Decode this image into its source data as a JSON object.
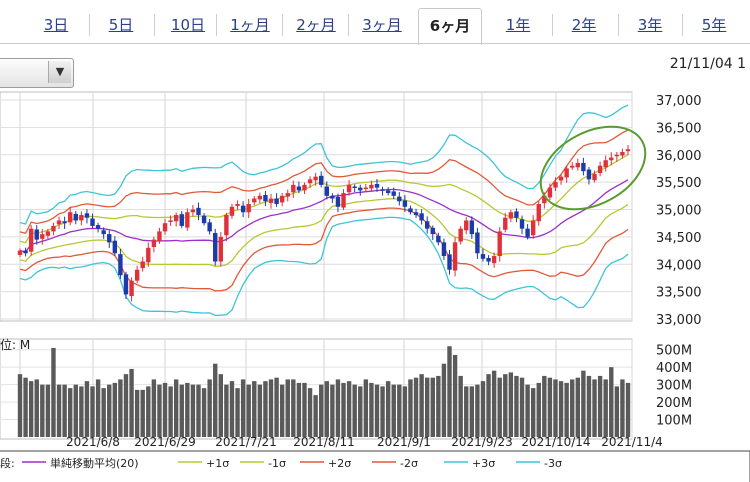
{
  "tabs": [
    {
      "label": "3日",
      "active": false
    },
    {
      "label": "5日",
      "active": false
    },
    {
      "label": "10日",
      "active": false
    },
    {
      "label": "1ヶ月",
      "active": false
    },
    {
      "label": "2ヶ月",
      "active": false
    },
    {
      "label": "3ヶ月",
      "active": false
    },
    {
      "label": "6ヶ月",
      "active": true
    },
    {
      "label": "1年",
      "active": false
    },
    {
      "label": "2年",
      "active": false
    },
    {
      "label": "3年",
      "active": false
    },
    {
      "label": "5年",
      "active": false
    }
  ],
  "header": {
    "datestamp": "21/11/04 1",
    "dropdown_icon": "triangle-down-icon"
  },
  "chart_data": {
    "type": "candlestick",
    "price_axis": {
      "ticks": [
        "37,000",
        "36,500",
        "36,000",
        "35,500",
        "35,000",
        "34,500",
        "34,000",
        "33,500",
        "33,000"
      ],
      "ylim": [
        33000,
        37000
      ]
    },
    "volume_axis": {
      "label": "位: M",
      "ticks": [
        "500M",
        "400M",
        "300M",
        "200M",
        "100M"
      ],
      "ylim": [
        0,
        550
      ]
    },
    "x_labels": [
      "2021/6/8",
      "2021/6/29",
      "2021/7/21",
      "2021/8/11",
      "2021/9/1",
      "2021/9/23",
      "2021/10/14",
      "2021/11/4"
    ],
    "legend": {
      "prefix": "段:",
      "items": [
        {
          "label": "単純移動平均(20)",
          "color": "#9b30c8"
        },
        {
          "label": "+1σ",
          "color": "#b8c832"
        },
        {
          "label": "-1σ",
          "color": "#b8c832"
        },
        {
          "label": "+2σ",
          "color": "#e05a3a"
        },
        {
          "label": "-2σ",
          "color": "#e05a3a"
        },
        {
          "label": "+3σ",
          "color": "#3ec4d8"
        },
        {
          "label": "-3σ",
          "color": "#3ec4d8"
        }
      ]
    },
    "closes": [
      34250,
      34200,
      34650,
      34450,
      34550,
      34600,
      34700,
      34800,
      34750,
      34950,
      34800,
      34900,
      34850,
      34700,
      34650,
      34550,
      34400,
      34200,
      33800,
      33450,
      33700,
      33900,
      34050,
      34300,
      34450,
      34600,
      34750,
      34800,
      34900,
      34700,
      34950,
      35000,
      34900,
      34750,
      34600,
      34050,
      34500,
      34900,
      35050,
      35100,
      34950,
      35100,
      35200,
      35250,
      35150,
      35200,
      35100,
      35250,
      35300,
      35450,
      35350,
      35450,
      35550,
      35600,
      35450,
      35250,
      35200,
      35050,
      35300,
      35450,
      35400,
      35350,
      35400,
      35450,
      35400,
      35350,
      35300,
      35250,
      35150,
      35050,
      34950,
      34900,
      34800,
      34650,
      34550,
      34400,
      34150,
      33900,
      34400,
      34650,
      34800,
      34550,
      34200,
      34100,
      34050,
      34150,
      34600,
      34850,
      34950,
      34850,
      34650,
      34500,
      34800,
      35100,
      35250,
      35400,
      35500,
      35600,
      35750,
      35800,
      35850,
      35700,
      35550,
      35650,
      35800,
      35900,
      35950,
      36000,
      36050,
      36100
    ],
    "volumes": [
      360,
      340,
      320,
      330,
      300,
      300,
      510,
      300,
      300,
      280,
      300,
      290,
      320,
      290,
      330,
      280,
      300,
      310,
      330,
      360,
      390,
      270,
      270,
      290,
      330,
      300,
      310,
      290,
      330,
      300,
      310,
      300,
      300,
      280,
      330,
      420,
      360,
      300,
      320,
      280,
      330,
      300,
      320,
      300,
      320,
      330,
      340,
      300,
      330,
      330,
      310,
      310,
      280,
      240,
      300,
      320,
      300,
      330,
      310,
      320,
      300,
      290,
      330,
      310,
      300,
      290,
      320,
      300,
      300,
      290,
      330,
      340,
      360,
      340,
      340,
      350,
      420,
      520,
      470,
      350,
      290,
      290,
      300,
      320,
      360,
      380,
      340,
      360,
      370,
      350,
      340,
      300,
      280,
      310,
      350,
      340,
      330,
      320,
      310,
      330,
      340,
      380,
      350,
      330,
      350,
      330,
      400,
      290,
      330,
      310
    ]
  }
}
